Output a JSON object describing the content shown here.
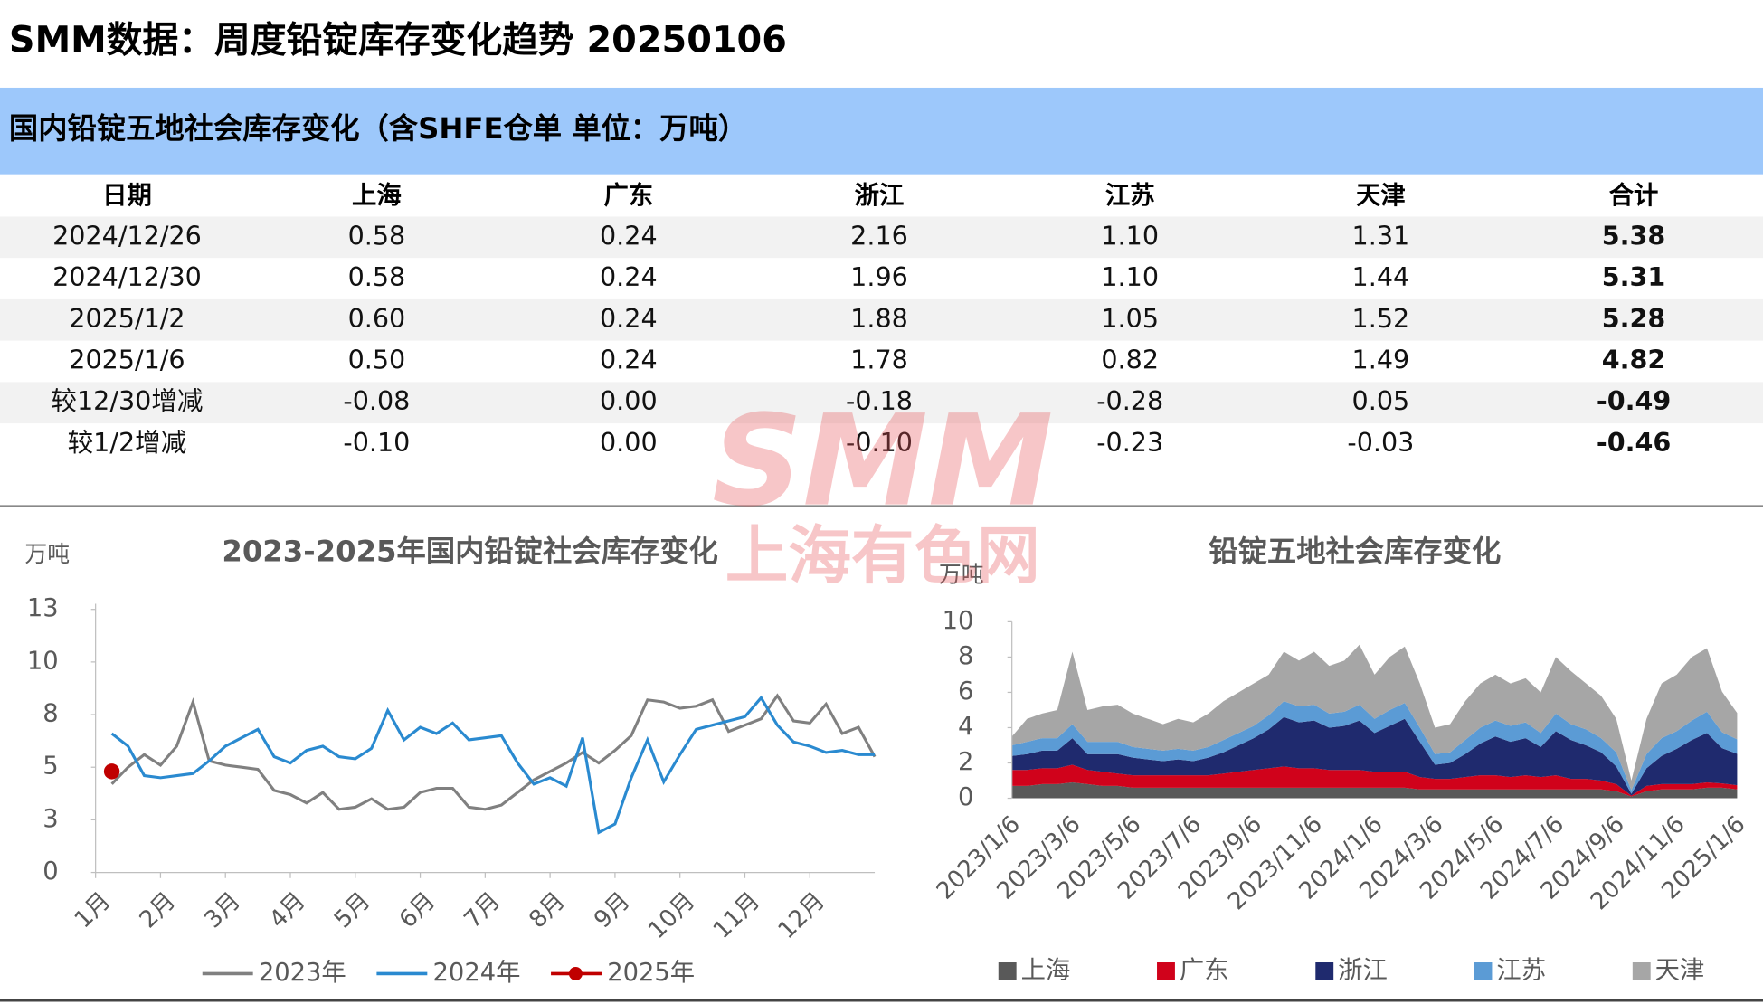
{
  "header": {
    "title": "SMM数据：周度铅锭库存变化趋势 20250106"
  },
  "table": {
    "title": "国内铅锭五地社会库存变化（含SHFE仓单 单位：万吨）",
    "columns": [
      "日期",
      "上海",
      "广东",
      "浙江",
      "江苏",
      "天津",
      "合计"
    ],
    "rows": [
      [
        "2024/12/26",
        "0.58",
        "0.24",
        "2.16",
        "1.10",
        "1.31",
        "5.38"
      ],
      [
        "2024/12/30",
        "0.58",
        "0.24",
        "1.96",
        "1.10",
        "1.44",
        "5.31"
      ],
      [
        "2025/1/2",
        "0.60",
        "0.24",
        "1.88",
        "1.05",
        "1.52",
        "5.28"
      ],
      [
        "2025/1/6",
        "0.50",
        "0.24",
        "1.78",
        "0.82",
        "1.49",
        "4.82"
      ],
      [
        "较12/30增减",
        "-0.08",
        "0.00",
        "-0.18",
        "-0.28",
        "0.05",
        "-0.49"
      ],
      [
        "较1/2增减",
        "-0.10",
        "0.00",
        "-0.10",
        "-0.23",
        "-0.03",
        "-0.46"
      ]
    ]
  },
  "watermark": {
    "logo": "SMM",
    "text": "上海有色网"
  },
  "chart_data": [
    {
      "type": "line",
      "title": "2023-2025年国内铅锭社会库存变化",
      "y_label": "万吨",
      "x": [
        0,
        0.25,
        0.5,
        0.75,
        1,
        1.25,
        1.5,
        1.75,
        2,
        2.25,
        2.5,
        2.75,
        3,
        3.25,
        3.5,
        3.75,
        4,
        4.25,
        4.5,
        4.75,
        5,
        5.25,
        5.5,
        5.75,
        6,
        6.25,
        6.5,
        6.75,
        7,
        7.25,
        7.5,
        7.75,
        8,
        8.25,
        8.5,
        8.75,
        9,
        9.25,
        9.5,
        9.75,
        10,
        10.25,
        10.5,
        10.75,
        11,
        11.25,
        11.5,
        11.75,
        12
      ],
      "xlim": [
        0,
        12
      ],
      "xticks": [
        {
          "value": 0,
          "label": "1月"
        },
        {
          "value": 1,
          "label": "2月"
        },
        {
          "value": 2,
          "label": "3月"
        },
        {
          "value": 3,
          "label": "4月"
        },
        {
          "value": 4,
          "label": "5月"
        },
        {
          "value": 5,
          "label": "6月"
        },
        {
          "value": 6,
          "label": "7月"
        },
        {
          "value": 7,
          "label": "8月"
        },
        {
          "value": 8,
          "label": "9月"
        },
        {
          "value": 9,
          "label": "10月"
        },
        {
          "value": 10,
          "label": "11月"
        },
        {
          "value": 11,
          "label": "12月"
        }
      ],
      "ylim": [
        0,
        12.5
      ],
      "yticks": [
        0,
        {
          "value": 2.5,
          "label": "3"
        },
        5,
        {
          "value": 7.5,
          "label": "8"
        },
        10,
        {
          "value": 12.5,
          "label": "13"
        }
      ],
      "grid": false,
      "legend": "bottom",
      "series": [
        {
          "name": "2023年",
          "color": "#808080",
          "marker": false,
          "values": [
            null,
            4.2,
            5.0,
            5.6,
            5.1,
            6.0,
            8.1,
            5.3,
            5.1,
            5.0,
            4.9,
            3.9,
            3.7,
            3.3,
            3.8,
            3.0,
            3.1,
            3.5,
            3.0,
            3.1,
            3.8,
            4.0,
            4.0,
            3.1,
            3.0,
            3.2,
            3.8,
            4.4,
            4.8,
            5.2,
            5.7,
            5.2,
            5.8,
            6.5,
            8.2,
            8.1,
            7.8,
            7.9,
            8.2,
            6.7,
            7.0,
            7.3,
            8.4,
            7.2,
            7.1,
            8.0,
            6.6,
            6.9,
            5.5
          ]
        },
        {
          "name": "2024年",
          "color": "#2a8ad0",
          "marker": false,
          "values": [
            null,
            6.6,
            6.0,
            4.6,
            4.5,
            4.6,
            4.7,
            5.3,
            6.0,
            6.4,
            6.8,
            5.5,
            5.2,
            5.8,
            6.0,
            5.5,
            5.4,
            5.9,
            7.7,
            6.3,
            6.9,
            6.6,
            7.1,
            6.3,
            6.4,
            6.5,
            5.2,
            4.2,
            4.5,
            4.1,
            6.4,
            1.9,
            2.3,
            4.5,
            6.3,
            4.3,
            5.6,
            6.8,
            7.0,
            7.2,
            7.4,
            8.3,
            7.0,
            6.2,
            6.0,
            5.7,
            5.8,
            5.6,
            5.6
          ]
        },
        {
          "name": "2025年",
          "color": "#c00000",
          "marker": true,
          "values": [
            null,
            4.8,
            null,
            null,
            null,
            null,
            null,
            null,
            null,
            null,
            null,
            null,
            null,
            null,
            null,
            null,
            null,
            null,
            null,
            null,
            null,
            null,
            null,
            null,
            null,
            null,
            null,
            null,
            null,
            null,
            null,
            null,
            null,
            null,
            null,
            null,
            null,
            null,
            null,
            null,
            null,
            null,
            null,
            null,
            null,
            null,
            null,
            null,
            null
          ]
        }
      ]
    },
    {
      "type": "stacked_area",
      "title": "铅锭五地社会库存变化",
      "y_label": "万吨",
      "categories": [
        "2023/1/6",
        null,
        null,
        null,
        "2023/3/6",
        null,
        null,
        null,
        "2023/5/6",
        null,
        null,
        null,
        "2023/7/6",
        null,
        null,
        null,
        "2023/9/6",
        null,
        null,
        null,
        "2023/11/6",
        null,
        null,
        null,
        "2024/1/6",
        null,
        null,
        null,
        "2024/3/6",
        null,
        null,
        null,
        "2024/5/6",
        null,
        null,
        null,
        "2024/7/6",
        null,
        null,
        null,
        "2024/9/6",
        null,
        null,
        null,
        "2024/11/6",
        null,
        null,
        null,
        "2025/1/6"
      ],
      "ylim": [
        0,
        10
      ],
      "yticks": [
        0,
        2,
        4,
        6,
        8,
        10
      ],
      "grid": false,
      "legend": "bottom",
      "series": [
        {
          "name": "上海",
          "color": "#595959",
          "values": [
            0.7,
            0.7,
            0.8,
            0.8,
            0.9,
            0.8,
            0.7,
            0.7,
            0.6,
            0.6,
            0.6,
            0.6,
            0.6,
            0.6,
            0.6,
            0.6,
            0.6,
            0.6,
            0.6,
            0.6,
            0.6,
            0.6,
            0.6,
            0.6,
            0.6,
            0.6,
            0.6,
            0.5,
            0.5,
            0.5,
            0.5,
            0.5,
            0.5,
            0.5,
            0.5,
            0.5,
            0.5,
            0.5,
            0.5,
            0.5,
            0.4,
            0.1,
            0.4,
            0.5,
            0.5,
            0.5,
            0.6,
            0.6,
            0.5
          ]
        },
        {
          "name": "广东",
          "color": "#d0021b",
          "values": [
            0.9,
            0.9,
            0.9,
            0.9,
            1.0,
            0.8,
            0.8,
            0.7,
            0.7,
            0.7,
            0.7,
            0.7,
            0.7,
            0.7,
            0.8,
            0.9,
            1.0,
            1.1,
            1.2,
            1.1,
            1.1,
            1.0,
            1.0,
            1.0,
            0.9,
            0.9,
            0.9,
            0.7,
            0.6,
            0.6,
            0.7,
            0.8,
            0.8,
            0.7,
            0.8,
            0.7,
            0.8,
            0.6,
            0.6,
            0.5,
            0.4,
            0.05,
            0.3,
            0.3,
            0.3,
            0.3,
            0.3,
            0.24,
            0.24
          ]
        },
        {
          "name": "浙江",
          "color": "#1f2a6e",
          "values": [
            0.8,
            0.9,
            1.0,
            1.0,
            1.5,
            0.9,
            1.0,
            1.1,
            1.0,
            0.9,
            0.8,
            0.9,
            0.8,
            1.0,
            1.2,
            1.5,
            1.8,
            2.2,
            2.8,
            2.6,
            2.7,
            2.4,
            2.5,
            2.8,
            2.2,
            2.6,
            3.0,
            2.0,
            0.8,
            0.9,
            1.3,
            1.8,
            2.2,
            2.0,
            2.1,
            1.7,
            2.5,
            2.2,
            1.9,
            1.6,
            1.0,
            0.1,
            1.0,
            1.6,
            2.0,
            2.5,
            2.8,
            2.0,
            1.78
          ]
        },
        {
          "name": "江苏",
          "color": "#5b9bd5",
          "values": [
            0.6,
            0.7,
            0.7,
            0.7,
            0.8,
            0.7,
            0.7,
            0.7,
            0.6,
            0.6,
            0.6,
            0.6,
            0.6,
            0.6,
            0.7,
            0.7,
            0.7,
            0.8,
            0.9,
            0.9,
            0.9,
            0.8,
            0.8,
            0.9,
            0.8,
            0.9,
            0.9,
            0.8,
            0.6,
            0.6,
            0.8,
            0.9,
            0.9,
            0.9,
            0.9,
            0.8,
            1.0,
            0.9,
            0.9,
            0.8,
            0.8,
            0.2,
            0.8,
            1.0,
            1.0,
            1.1,
            1.2,
            0.9,
            0.82
          ]
        },
        {
          "name": "天津",
          "color": "#a6a6a6",
          "values": [
            0.5,
            1.3,
            1.4,
            1.6,
            4.1,
            1.8,
            2.0,
            2.1,
            1.9,
            1.7,
            1.5,
            1.7,
            1.6,
            1.9,
            2.2,
            2.3,
            2.4,
            2.3,
            2.8,
            2.6,
            3.0,
            2.7,
            2.9,
            3.4,
            2.5,
            3.0,
            3.2,
            2.5,
            1.5,
            1.6,
            2.2,
            2.5,
            2.6,
            2.4,
            2.5,
            2.3,
            3.2,
            3.0,
            2.6,
            2.4,
            1.9,
            0.55,
            2.0,
            3.1,
            3.2,
            3.6,
            3.6,
            2.3,
            1.49
          ]
        }
      ]
    }
  ]
}
